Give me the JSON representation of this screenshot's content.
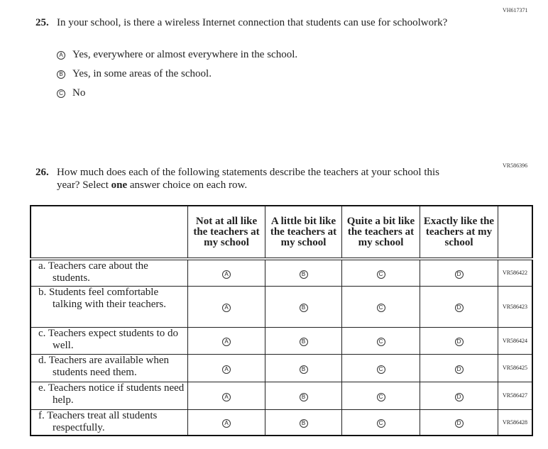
{
  "q25": {
    "code": "VH617371",
    "number": "25.",
    "text": "In your school, is there a wireless Internet connection that students can use for schoolwork?",
    "options": [
      {
        "letter": "A",
        "label": "Yes, everywhere or almost everywhere in the school."
      },
      {
        "letter": "B",
        "label": "Yes, in some areas of the school."
      },
      {
        "letter": "C",
        "label": "No"
      }
    ]
  },
  "q26": {
    "code": "VR586396",
    "number": "26.",
    "text_before": "How much does each of the following statements describe the teachers at your school this year? Select ",
    "text_bold": "one",
    "text_after": " answer choice on each row.",
    "columns": [
      "Not at all like the teachers at my school",
      "A little bit like the teachers at my school",
      "Quite a bit like the teachers at my school",
      "Exactly like the teachers at my school"
    ],
    "letters": [
      "A",
      "B",
      "C",
      "D"
    ],
    "rows": [
      {
        "label": "a. Teachers care about the students.",
        "code": "VR586422"
      },
      {
        "label": "b. Students feel comfortable talking with their teachers.",
        "code": "VR586423"
      },
      {
        "label": "c. Teachers expect students to do well.",
        "code": "VR586424"
      },
      {
        "label": "d. Teachers are available when students need them.",
        "code": "VR586425"
      },
      {
        "label": "e. Teachers notice if students need help.",
        "code": "VR586427"
      },
      {
        "label": "f. Teachers treat all students respectfully.",
        "code": "VR586428"
      }
    ]
  }
}
